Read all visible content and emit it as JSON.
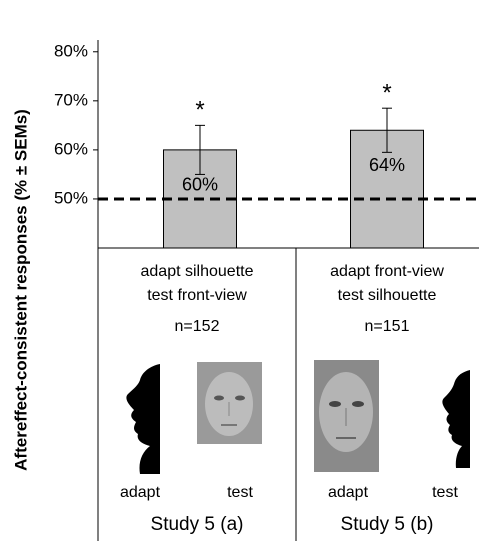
{
  "chart_data": {
    "type": "bar",
    "y_label": "Aftereffect-consistent responses (% ± SEMs)",
    "categories": [
      "Study 5 (a)",
      "Study 5 (b)"
    ],
    "values": [
      60,
      64
    ],
    "value_labels": [
      "60%",
      "64%"
    ],
    "errors": [
      5,
      4.5
    ],
    "annotations": [
      "*",
      "*"
    ],
    "reference_line": 50,
    "color": "#c0c0c0",
    "ylim": [
      40,
      82.4
    ],
    "yticks": [
      {
        "value": 50,
        "label": "50%"
      },
      {
        "value": 60,
        "label": "60%"
      },
      {
        "value": 70,
        "label": "70%"
      },
      {
        "value": 80,
        "label": "80%"
      }
    ],
    "conditions": [
      {
        "lines": [
          "adapt silhouette",
          "test front-view"
        ],
        "n": "n=152",
        "image_labels": [
          "adapt",
          "test"
        ]
      },
      {
        "lines": [
          "adapt front-view",
          "test silhouette"
        ],
        "n": "n=151",
        "image_labels": [
          "adapt",
          "test"
        ]
      }
    ]
  }
}
